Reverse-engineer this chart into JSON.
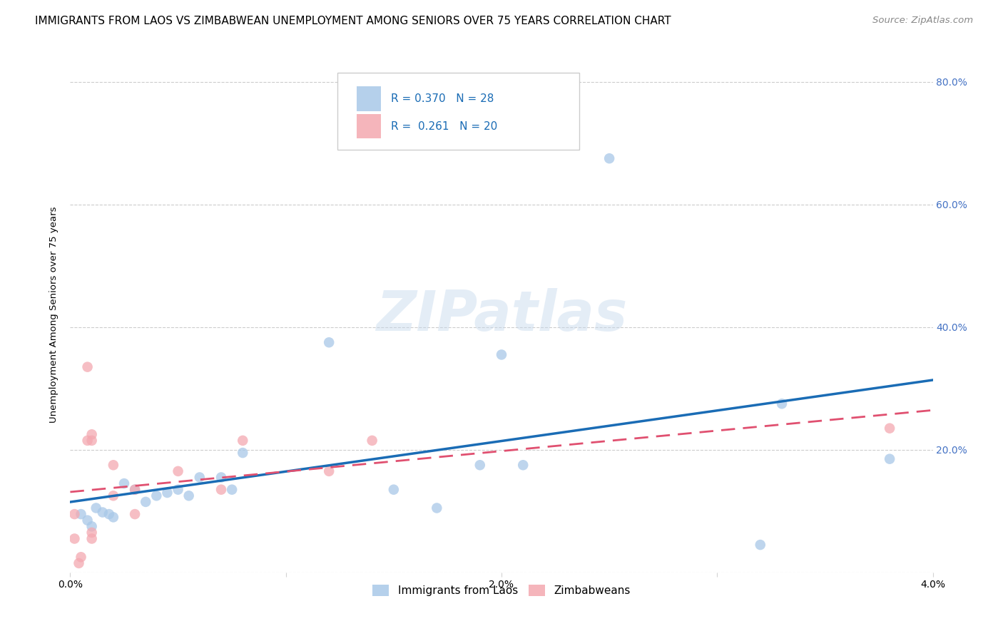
{
  "title": "IMMIGRANTS FROM LAOS VS ZIMBABWEAN UNEMPLOYMENT AMONG SENIORS OVER 75 YEARS CORRELATION CHART",
  "source": "Source: ZipAtlas.com",
  "ylabel": "Unemployment Among Seniors over 75 years",
  "series1_label": "Immigrants from Laos",
  "series2_label": "Zimbabweans",
  "series1_color": "#a8c8e8",
  "series2_color": "#f4a8b0",
  "series1_line_color": "#1a6cb5",
  "series2_line_color": "#e05070",
  "right_tick_color": "#4472c4",
  "R1": "0.370",
  "N1": "28",
  "R2": "0.261",
  "N2": "20",
  "watermark": "ZIPatlas",
  "xlim": [
    0.0,
    0.04
  ],
  "ylim": [
    0.0,
    0.84
  ],
  "yticks": [
    0.0,
    0.2,
    0.4,
    0.6,
    0.8
  ],
  "ytick_labels": [
    "",
    "20.0%",
    "40.0%",
    "60.0%",
    "80.0%"
  ],
  "xticks": [
    0.0,
    0.01,
    0.02,
    0.03,
    0.04
  ],
  "xtick_labels": [
    "0.0%",
    "",
    "2.0%",
    "",
    "4.0%"
  ],
  "laos_x": [
    0.0005,
    0.0008,
    0.001,
    0.0012,
    0.0015,
    0.0018,
    0.002,
    0.0025,
    0.003,
    0.0035,
    0.004,
    0.0045,
    0.005,
    0.0055,
    0.006,
    0.007,
    0.0075,
    0.008,
    0.012,
    0.015,
    0.017,
    0.019,
    0.02,
    0.021,
    0.025,
    0.032,
    0.033,
    0.038
  ],
  "laos_y": [
    0.095,
    0.085,
    0.075,
    0.105,
    0.098,
    0.095,
    0.09,
    0.145,
    0.135,
    0.115,
    0.125,
    0.13,
    0.135,
    0.125,
    0.155,
    0.155,
    0.135,
    0.195,
    0.375,
    0.135,
    0.105,
    0.175,
    0.355,
    0.175,
    0.675,
    0.045,
    0.275,
    0.185
  ],
  "zimb_x": [
    0.0002,
    0.0002,
    0.0004,
    0.0005,
    0.0008,
    0.0008,
    0.001,
    0.001,
    0.001,
    0.001,
    0.002,
    0.002,
    0.003,
    0.003,
    0.005,
    0.007,
    0.008,
    0.012,
    0.014,
    0.038
  ],
  "zimb_y": [
    0.095,
    0.055,
    0.015,
    0.025,
    0.335,
    0.215,
    0.225,
    0.215,
    0.065,
    0.055,
    0.125,
    0.175,
    0.095,
    0.135,
    0.165,
    0.135,
    0.215,
    0.165,
    0.215,
    0.235
  ],
  "title_fontsize": 11,
  "axis_label_fontsize": 9.5,
  "tick_fontsize": 10,
  "legend_fontsize": 11,
  "source_fontsize": 9.5,
  "marker_size": 110
}
